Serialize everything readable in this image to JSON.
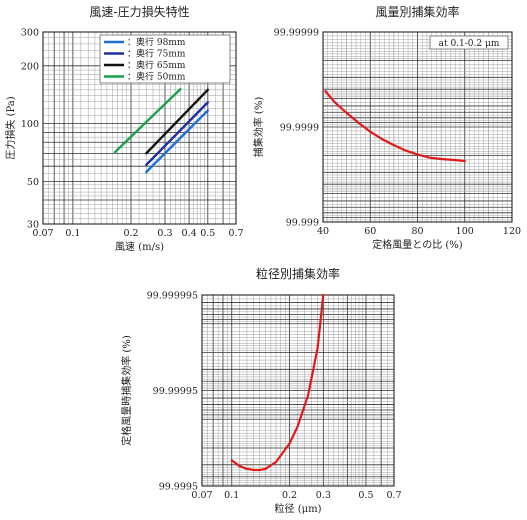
{
  "chart_data": [
    {
      "type": "line",
      "title": "風速-圧力損失特性",
      "xlabel": "風速 (m/s)",
      "ylabel": "圧力損失 (Pa)",
      "xscale": "log",
      "yscale": "log",
      "xlim": [
        0.07,
        0.7
      ],
      "ylim": [
        30,
        300
      ],
      "xticks": [
        0.07,
        0.1,
        0.2,
        0.3,
        0.4,
        0.5,
        0.7
      ],
      "xtick_labels": [
        "0.07",
        "0.1",
        "0.2",
        "0.3",
        "0.4",
        "0.5",
        "0.7"
      ],
      "yticks": [
        30,
        50,
        100,
        200,
        300
      ],
      "ytick_labels": [
        "30",
        "50",
        "100",
        "200",
        "300"
      ],
      "grid": true,
      "legend_position": "top-right",
      "series": [
        {
          "name": "：奥行 98mm",
          "color": "#1f6fd0",
          "x": [
            0.24,
            0.5
          ],
          "y": [
            56,
            117
          ]
        },
        {
          "name": "：奥行 75mm",
          "color": "#1e2f9e",
          "x": [
            0.24,
            0.5
          ],
          "y": [
            61,
            129
          ]
        },
        {
          "name": "：奥行 65mm",
          "color": "#111111",
          "x": [
            0.24,
            0.5
          ],
          "y": [
            70,
            150
          ]
        },
        {
          "name": "：奥行 50mm",
          "color": "#1aa34a",
          "x": [
            0.165,
            0.36
          ],
          "y": [
            71,
            151
          ]
        }
      ]
    },
    {
      "type": "line",
      "title": "風量別捕集効率",
      "xlabel": "定格風量との比 (%)",
      "ylabel": "捕集効率 (%)",
      "yscale": "log-penetration",
      "xlim": [
        40,
        120
      ],
      "ylim": [
        99.999,
        99.99999
      ],
      "xticks": [
        40,
        60,
        80,
        100,
        120
      ],
      "xtick_labels": [
        "40",
        "60",
        "80",
        "100",
        "120"
      ],
      "yticks": [
        99.999,
        99.9999,
        99.99999
      ],
      "ytick_labels": [
        "99.999",
        "99.9999",
        "99.99999"
      ],
      "grid": true,
      "annotation": "at 0.1-0.2 μm",
      "series": [
        {
          "color": "#e01a1a",
          "x": [
            41,
            45,
            50,
            55,
            60,
            65,
            70,
            75,
            80,
            85,
            90,
            95,
            100
          ],
          "y": [
            99.999958,
            99.999945,
            99.999929,
            99.99991,
            99.999888,
            99.999866,
            99.999845,
            99.999823,
            99.999805,
            99.99979,
            99.999783,
            99.999778,
            99.999772
          ]
        }
      ]
    },
    {
      "type": "line",
      "title": "粒径別捕集効率",
      "xlabel": "粒径 (μm)",
      "ylabel": "定格風量時捕集効率 (%)",
      "xscale": "log",
      "yscale": "log-penetration",
      "xlim": [
        0.07,
        0.7
      ],
      "ylim": [
        99.9995,
        99.999995
      ],
      "xticks": [
        0.07,
        0.1,
        0.2,
        0.3,
        0.5,
        0.7
      ],
      "xtick_labels": [
        "0.07",
        "0.1",
        "0.2",
        "0.3",
        "0.5",
        "0.7"
      ],
      "yticks": [
        99.9995,
        99.99995,
        99.999995
      ],
      "ytick_labels": [
        "99.9995",
        "99.99995",
        "99.999995"
      ],
      "grid": true,
      "series": [
        {
          "color": "#e01a1a",
          "x": [
            0.1,
            0.11,
            0.12,
            0.13,
            0.14,
            0.15,
            0.17,
            0.2,
            0.22,
            0.25,
            0.28,
            0.3
          ],
          "y": [
            99.99973,
            99.99969,
            99.99967,
            99.99966,
            99.99966,
            99.99967,
            99.99972,
            99.99982,
            99.99988,
            99.999944,
            99.999982,
            99.999995
          ]
        }
      ]
    }
  ]
}
